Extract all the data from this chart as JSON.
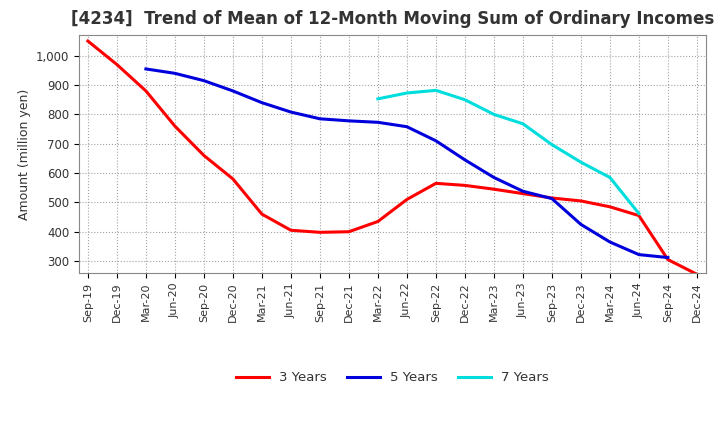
{
  "title": "[4234]  Trend of Mean of 12-Month Moving Sum of Ordinary Incomes",
  "ylabel": "Amount (million yen)",
  "background_color": "#ffffff",
  "plot_bg_color": "#ffffff",
  "grid_color": "#999999",
  "title_fontsize": 12,
  "label_fontsize": 9,
  "tick_fontsize": 8.5,
  "ylim": [
    260,
    1070
  ],
  "yticks": [
    300,
    400,
    500,
    600,
    700,
    800,
    900,
    1000
  ],
  "ytick_labels": [
    "300",
    "400",
    "500",
    "600",
    "700",
    "800",
    "900",
    "1,000"
  ],
  "x_labels": [
    "Sep-19",
    "Dec-19",
    "Mar-20",
    "Jun-20",
    "Sep-20",
    "Dec-20",
    "Mar-21",
    "Jun-21",
    "Sep-21",
    "Dec-21",
    "Mar-22",
    "Jun-22",
    "Sep-22",
    "Dec-22",
    "Mar-23",
    "Jun-23",
    "Sep-23",
    "Dec-23",
    "Mar-24",
    "Jun-24",
    "Sep-24",
    "Dec-24"
  ],
  "series": {
    "3 Years": {
      "color": "#ff0000",
      "values": [
        1050,
        970,
        880,
        760,
        660,
        580,
        460,
        405,
        398,
        400,
        435,
        510,
        565,
        558,
        545,
        530,
        515,
        505,
        485,
        455,
        305,
        255
      ]
    },
    "5 Years": {
      "color": "#0000dd",
      "values": [
        null,
        null,
        955,
        940,
        915,
        880,
        840,
        808,
        785,
        778,
        773,
        758,
        710,
        645,
        585,
        538,
        513,
        425,
        365,
        322,
        312,
        null
      ]
    },
    "7 Years": {
      "color": "#00dddd",
      "values": [
        null,
        null,
        null,
        null,
        null,
        null,
        null,
        null,
        null,
        null,
        853,
        873,
        882,
        850,
        800,
        768,
        697,
        637,
        585,
        462,
        null,
        null
      ]
    },
    "10 Years": {
      "color": "#008800",
      "values": [
        null,
        null,
        null,
        null,
        null,
        null,
        null,
        null,
        null,
        null,
        null,
        null,
        null,
        null,
        null,
        null,
        null,
        null,
        null,
        null,
        null,
        null
      ]
    }
  }
}
